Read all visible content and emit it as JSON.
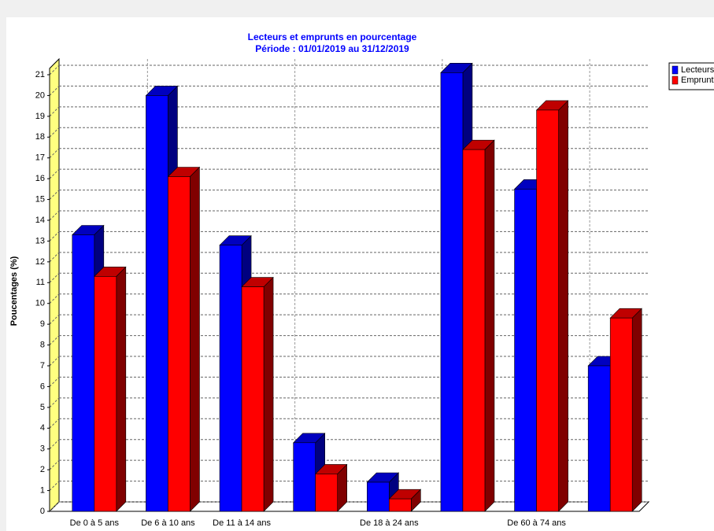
{
  "chart_data": {
    "type": "bar3d",
    "title": "Lecteurs  et emprunts en pourcentage",
    "subtitle": "Période : 01/01/2019 au 31/12/2019",
    "y_label": "Poucentages (%)",
    "categories": [
      "De 0 à 5 ans",
      "De 6 à 10 ans",
      "De 11 à 14 ans",
      null,
      "De 18 à 24 ans",
      null,
      "De 60 à 74 ans",
      null
    ],
    "series": [
      {
        "name": "Lecteurs",
        "color": "#0000ff",
        "values": [
          13.3,
          20.0,
          12.8,
          3.3,
          1.4,
          21.1,
          15.5,
          7.0
        ]
      },
      {
        "name": "Emprunts",
        "color": "#ff0000",
        "values": [
          11.3,
          16.1,
          10.8,
          1.8,
          0.6,
          17.4,
          19.3,
          9.3
        ]
      }
    ],
    "ylim": [
      0,
      21
    ],
    "yticks": [
      0,
      1,
      2,
      3,
      4,
      5,
      6,
      7,
      8,
      9,
      10,
      11,
      12,
      13,
      14,
      15,
      16,
      17,
      18,
      19,
      20,
      21
    ],
    "grid": true,
    "legend": "top-right"
  }
}
